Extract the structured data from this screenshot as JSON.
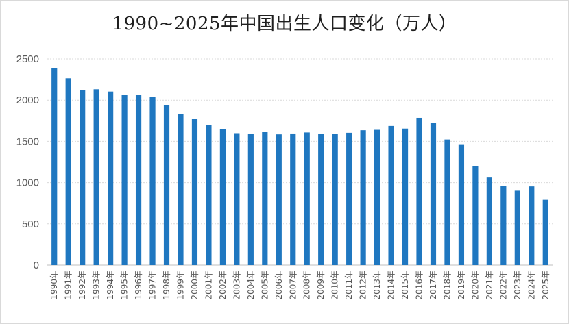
{
  "chart_data": {
    "type": "bar",
    "title": "1990~2025年中国出生人口变化（万人）",
    "xlabel": "",
    "ylabel": "",
    "ylim": [
      0,
      2500
    ],
    "yticks": [
      0,
      500,
      1000,
      1500,
      2000,
      2500
    ],
    "grid": true,
    "bar_color": "#1f77c0",
    "categories": [
      "1990年",
      "1991年",
      "1992年",
      "1993年",
      "1994年",
      "1995年",
      "1996年",
      "1997年",
      "1998年",
      "1999年",
      "2000年",
      "2001年",
      "2002年",
      "2003年",
      "2004年",
      "2005年",
      "2006年",
      "2007年",
      "2008年",
      "2009年",
      "2010年",
      "2011年",
      "2012年",
      "2013年",
      "2014年",
      "2015年",
      "2016年",
      "2017年",
      "2018年",
      "2019年",
      "2020年",
      "2021年",
      "2022年",
      "2023年",
      "2024年",
      "2025年"
    ],
    "values": [
      2391,
      2265,
      2125,
      2132,
      2104,
      2063,
      2067,
      2038,
      1942,
      1834,
      1771,
      1702,
      1647,
      1599,
      1593,
      1617,
      1585,
      1595,
      1608,
      1591,
      1592,
      1604,
      1635,
      1640,
      1687,
      1655,
      1786,
      1723,
      1523,
      1465,
      1200,
      1062,
      956,
      902,
      954,
      792
    ]
  }
}
